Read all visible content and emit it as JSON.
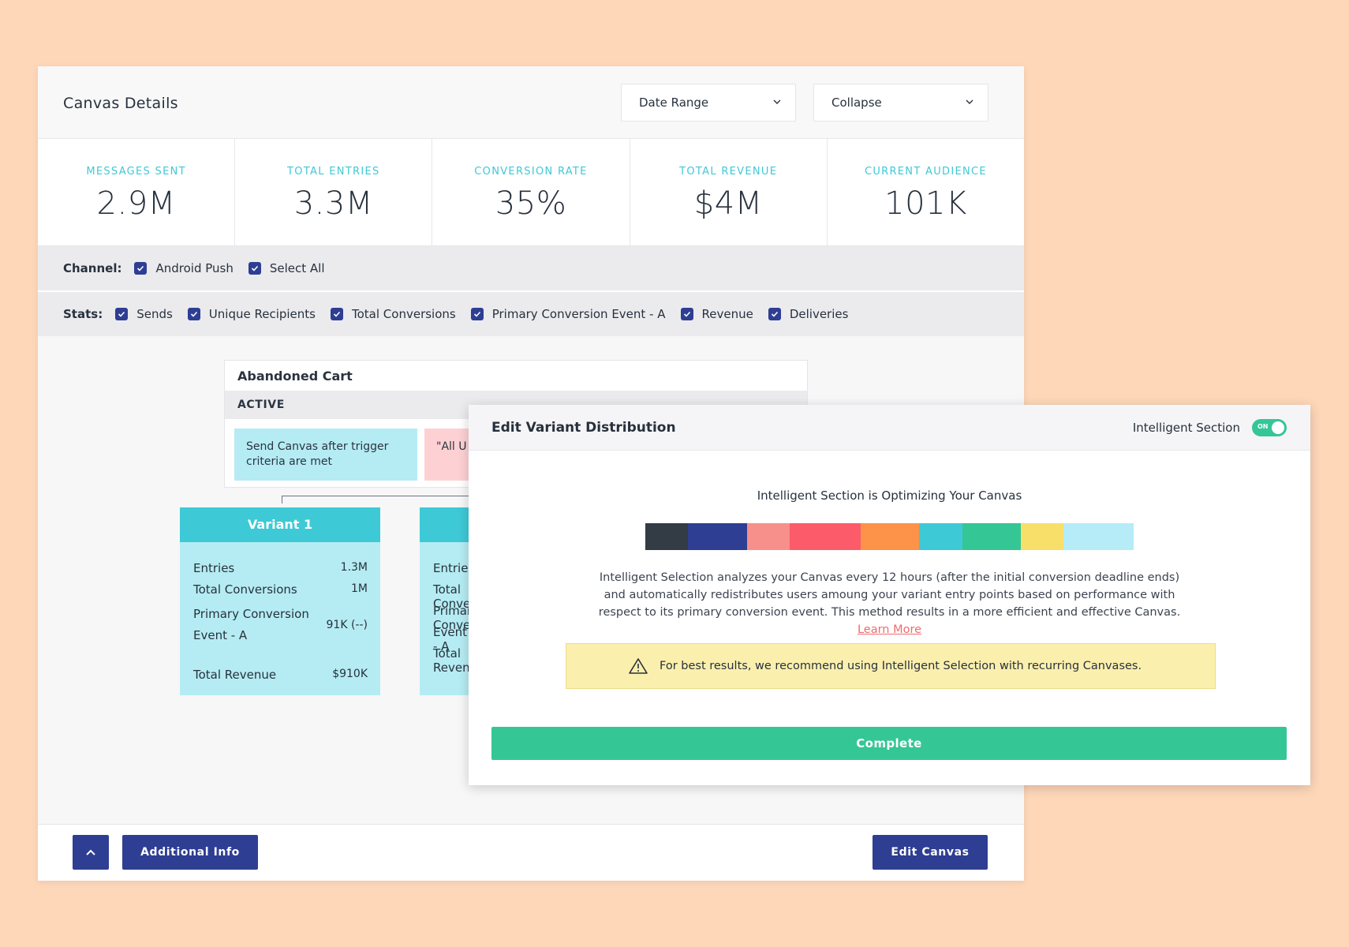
{
  "header": {
    "title": "Canvas Details",
    "date_range": "Date Range",
    "collapse": "Collapse"
  },
  "stats": [
    {
      "label": "MESSAGES SENT",
      "value": "2.9M"
    },
    {
      "label": "TOTAL ENTRIES",
      "value": "3.3M"
    },
    {
      "label": "CONVERSION RATE",
      "value": "35%"
    },
    {
      "label": "TOTAL REVENUE",
      "value": "$4M"
    },
    {
      "label": "CURRENT AUDIENCE",
      "value": "101K"
    }
  ],
  "channel": {
    "label": "Channel:",
    "options": [
      "Android Push",
      "Select All"
    ]
  },
  "stats_filter": {
    "label": "Stats:",
    "options": [
      "Sends",
      "Unique Recipients",
      "Total Conversions",
      "Primary Conversion Event - A",
      "Revenue",
      "Deliveries"
    ]
  },
  "canvas": {
    "name": "Abandoned Cart",
    "status": "ACTIVE",
    "trigger": "Send Canvas after trigger criteria are met",
    "filter": "\"All U is true"
  },
  "variant1": {
    "title": "Variant 1",
    "rows": [
      {
        "label": "Entries",
        "value": "1.3M"
      },
      {
        "label": "Total Conversions",
        "value": "1M"
      },
      {
        "label": "Primary Conversion",
        "label2": "Event - A",
        "value": "91K (--)"
      },
      {
        "label": "Total Revenue",
        "value": "$910K"
      }
    ]
  },
  "variant2": {
    "rows": [
      "Entries",
      "Total Conversions",
      "Primary Conversion",
      "Event - A",
      "Total Revenue"
    ]
  },
  "footer": {
    "additional_info": "Additional Info",
    "edit_canvas": "Edit Canvas"
  },
  "modal": {
    "title": "Edit Variant Distribution",
    "toggle_label": "Intelligent Section",
    "toggle_state": "ON",
    "subtitle": "Intelligent Section is Optimizing Your Canvas",
    "distribution_colors": [
      "#333b45",
      "#2e3e93",
      "#f7908a",
      "#fc5c69",
      "#fd9249",
      "#3ec9d6",
      "#35c696",
      "#f7df6a",
      "#b5ecf8"
    ],
    "distribution_shares": [
      0.088,
      0.12,
      0.088,
      0.145,
      0.12,
      0.088,
      0.12,
      0.088,
      0.143
    ],
    "description": "Intelligent Selection analyzes your Canvas every 12 hours (after the initial conversion deadline ends) and automatically redistributes users amoung your variant entry points based on performance with respect to its primary conversion event. This method results in a more efficient and effective Canvas.",
    "learn_more": "Learn More",
    "warning": "For best results, we recommend using Intelligent Selection with recurring Canvases.",
    "complete": "Complete"
  }
}
